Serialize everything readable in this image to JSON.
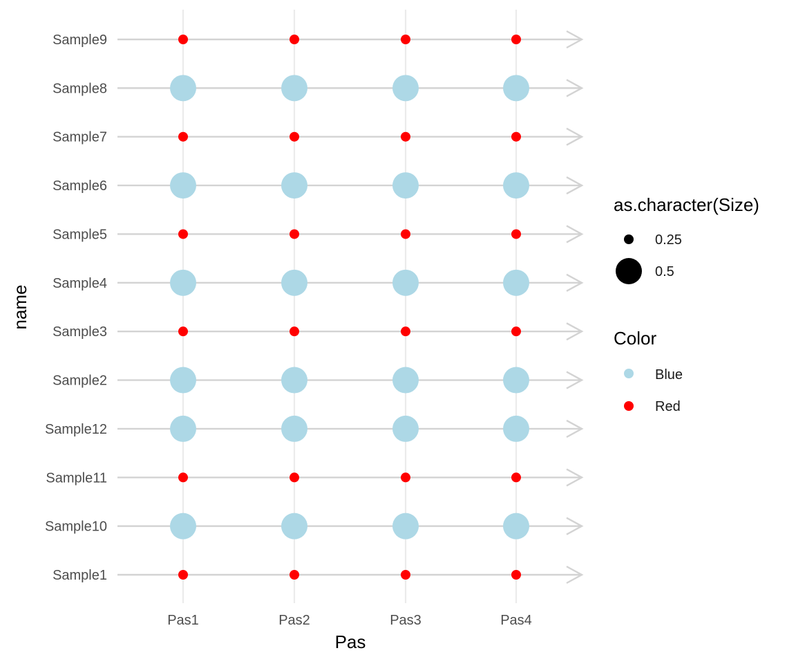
{
  "chart_data": {
    "type": "scatter",
    "xlabel": "Pas",
    "ylabel": "name",
    "x_categories": [
      "Pas1",
      "Pas2",
      "Pas3",
      "Pas4"
    ],
    "y_categories": [
      "Sample1",
      "Sample10",
      "Sample11",
      "Sample12",
      "Sample2",
      "Sample3",
      "Sample4",
      "Sample5",
      "Sample6",
      "Sample7",
      "Sample8",
      "Sample9"
    ],
    "points": [
      {
        "name": "Sample1",
        "size": 0.25,
        "color": "Red"
      },
      {
        "name": "Sample10",
        "size": 0.5,
        "color": "Blue"
      },
      {
        "name": "Sample11",
        "size": 0.25,
        "color": "Red"
      },
      {
        "name": "Sample12",
        "size": 0.5,
        "color": "Blue"
      },
      {
        "name": "Sample2",
        "size": 0.5,
        "color": "Blue"
      },
      {
        "name": "Sample3",
        "size": 0.25,
        "color": "Red"
      },
      {
        "name": "Sample4",
        "size": 0.5,
        "color": "Blue"
      },
      {
        "name": "Sample5",
        "size": 0.25,
        "color": "Red"
      },
      {
        "name": "Sample6",
        "size": 0.5,
        "color": "Blue"
      },
      {
        "name": "Sample7",
        "size": 0.25,
        "color": "Red"
      },
      {
        "name": "Sample8",
        "size": 0.5,
        "color": "Blue"
      },
      {
        "name": "Sample9",
        "size": 0.25,
        "color": "Red"
      }
    ],
    "legends": {
      "size": {
        "title": "as.character(Size)",
        "entries": [
          "0.25",
          "0.5"
        ]
      },
      "color": {
        "title": "Color",
        "entries": [
          "Blue",
          "Red"
        ]
      }
    },
    "colors": {
      "Blue": "#add8e6",
      "Red": "#ff0000"
    },
    "grid": true,
    "row_arrows": true,
    "legend_position": "right"
  }
}
